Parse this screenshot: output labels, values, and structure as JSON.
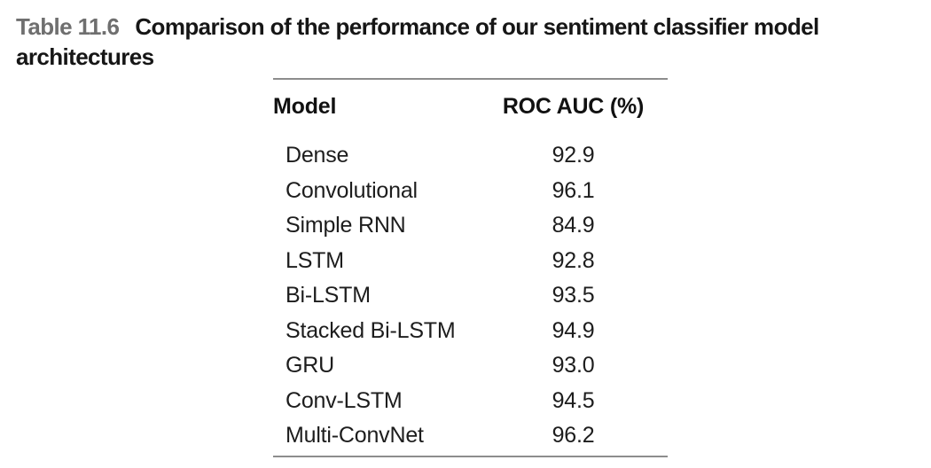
{
  "caption": {
    "label": "Table 11.6",
    "title": "Comparison of the performance of our sentiment classifier model architectures"
  },
  "table": {
    "columns": [
      "Model",
      "ROC AUC (%)"
    ],
    "rows": [
      {
        "model": "Dense",
        "roc_auc": "92.9"
      },
      {
        "model": "Convolutional",
        "roc_auc": "96.1"
      },
      {
        "model": "Simple RNN",
        "roc_auc": "84.9"
      },
      {
        "model": "LSTM",
        "roc_auc": "92.8"
      },
      {
        "model": "Bi-LSTM",
        "roc_auc": "93.5"
      },
      {
        "model": "Stacked Bi-LSTM",
        "roc_auc": "94.9"
      },
      {
        "model": "GRU",
        "roc_auc": "93.0"
      },
      {
        "model": "Conv-LSTM",
        "roc_auc": "94.5"
      },
      {
        "model": "Multi-ConvNet",
        "roc_auc": "96.2"
      }
    ]
  },
  "colors": {
    "caption_label": "#6f6f6f",
    "caption_text": "#161616",
    "table_text": "#1d1d1d",
    "rule": "#8d8d8d",
    "background": "#ffffff"
  }
}
